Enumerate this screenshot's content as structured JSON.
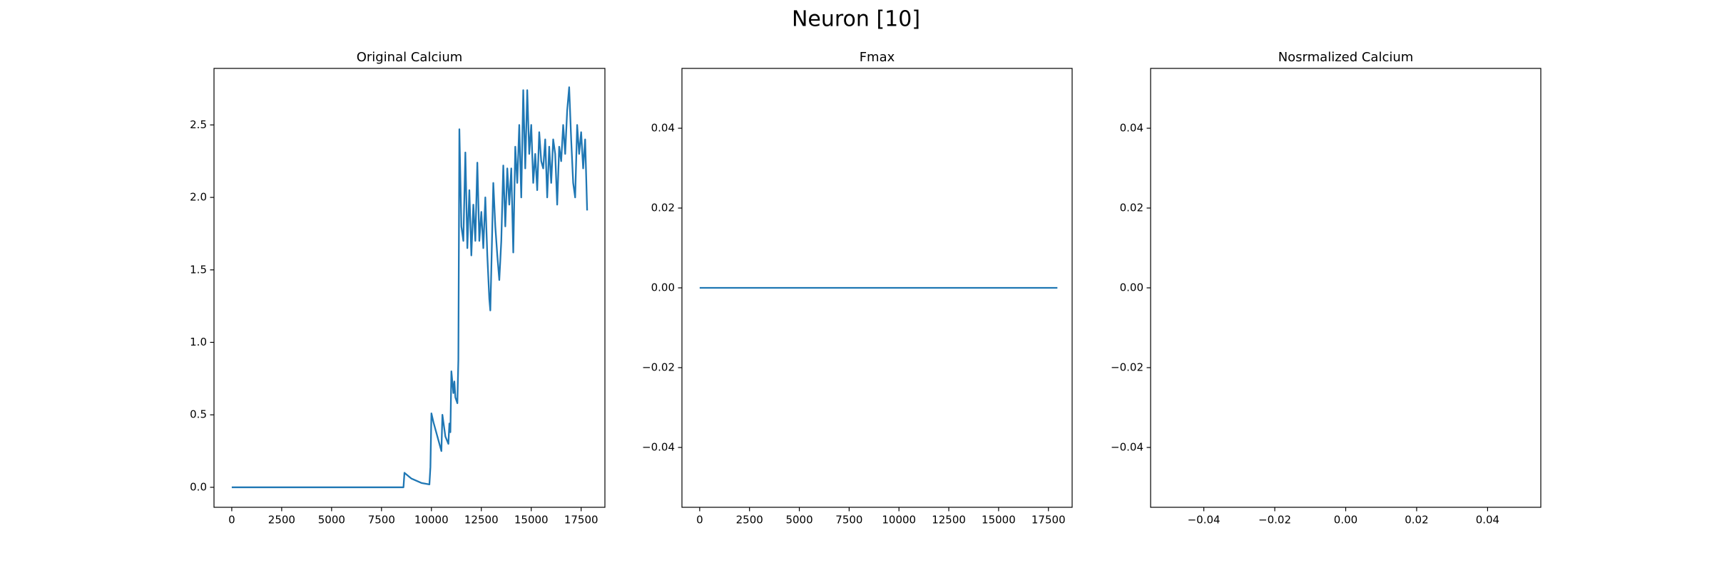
{
  "title": "Neuron [10]",
  "chart_data": [
    {
      "type": "line",
      "title": "Original Calcium",
      "xlim": [
        -890,
        18690
      ],
      "ylim": [
        -0.138,
        2.89
      ],
      "xticks": [
        0,
        2500,
        5000,
        7500,
        10000,
        12500,
        15000,
        17500
      ],
      "yticks": [
        {
          "value": 0,
          "label": "0.0"
        },
        0.5,
        {
          "value": 1,
          "label": "1.0"
        },
        1.5,
        {
          "value": 2,
          "label": "2.0"
        },
        2.5
      ],
      "series": [
        {
          "color": "#1f77b4",
          "x": [
            0,
            8600,
            8650,
            9000,
            9500,
            9900,
            9950,
            10000,
            10100,
            10500,
            10550,
            10700,
            10850,
            10900,
            10950,
            11000,
            11100,
            11150,
            11200,
            11300,
            11350,
            11400,
            11500,
            11600,
            11700,
            11800,
            11900,
            12000,
            12100,
            12200,
            12300,
            12400,
            12500,
            12600,
            12700,
            12800,
            12900,
            12950,
            13000,
            13100,
            13200,
            13300,
            13400,
            13500,
            13600,
            13700,
            13800,
            13900,
            14000,
            14100,
            14200,
            14300,
            14400,
            14500,
            14600,
            14700,
            14800,
            14900,
            15000,
            15100,
            15200,
            15300,
            15400,
            15500,
            15600,
            15700,
            15800,
            15900,
            16000,
            16100,
            16200,
            16300,
            16400,
            16500,
            16600,
            16700,
            16800,
            16900,
            17000,
            17100,
            17200,
            17300,
            17400,
            17500,
            17600,
            17700,
            17800
          ],
          "values": [
            0,
            0,
            0.1,
            0.06,
            0.03,
            0.02,
            0.14,
            0.51,
            0.45,
            0.25,
            0.5,
            0.35,
            0.3,
            0.44,
            0.38,
            0.8,
            0.65,
            0.73,
            0.62,
            0.58,
            0.88,
            2.47,
            1.8,
            1.7,
            2.31,
            1.65,
            2.05,
            1.6,
            1.95,
            1.7,
            2.24,
            1.7,
            1.9,
            1.65,
            2.0,
            1.6,
            1.3,
            1.22,
            1.5,
            2.1,
            1.8,
            1.6,
            1.43,
            1.7,
            2.22,
            1.8,
            2.2,
            1.95,
            2.2,
            1.62,
            2.35,
            2.1,
            2.5,
            2.0,
            2.74,
            2.2,
            2.74,
            2.3,
            2.5,
            2.1,
            2.3,
            2.05,
            2.45,
            2.25,
            2.2,
            2.4,
            2.0,
            2.35,
            2.1,
            2.4,
            2.3,
            1.95,
            2.35,
            2.25,
            2.5,
            2.3,
            2.6,
            2.76,
            2.4,
            2.1,
            2.0,
            2.5,
            2.3,
            2.45,
            2.2,
            2.4,
            1.91
          ]
        }
      ]
    },
    {
      "type": "line",
      "title": "Fmax",
      "xlim": [
        -890,
        18690
      ],
      "ylim": [
        -0.055,
        0.055
      ],
      "xticks": [
        0,
        2500,
        5000,
        7500,
        10000,
        12500,
        15000,
        17500
      ],
      "yticks": [
        {
          "value": -0.04,
          "label": "−0.04"
        },
        {
          "value": -0.02,
          "label": "−0.02"
        },
        {
          "value": 0,
          "label": "0.00"
        },
        0.02,
        0.04
      ],
      "series": [
        {
          "color": "#1f77b4",
          "x": [
            0,
            17950
          ],
          "values": [
            0,
            0
          ]
        }
      ]
    },
    {
      "type": "line",
      "title": "Nosrmalized Calcium",
      "xlim": [
        -0.055,
        0.055
      ],
      "ylim": [
        -0.055,
        0.055
      ],
      "xticks": [
        {
          "value": -0.04,
          "label": "−0.04"
        },
        {
          "value": -0.02,
          "label": "−0.02"
        },
        {
          "value": 0,
          "label": "0.00"
        },
        0.02,
        0.04
      ],
      "yticks": [
        {
          "value": -0.04,
          "label": "−0.04"
        },
        {
          "value": -0.02,
          "label": "−0.02"
        },
        {
          "value": 0,
          "label": "0.00"
        },
        0.02,
        0.04
      ],
      "series": []
    }
  ]
}
